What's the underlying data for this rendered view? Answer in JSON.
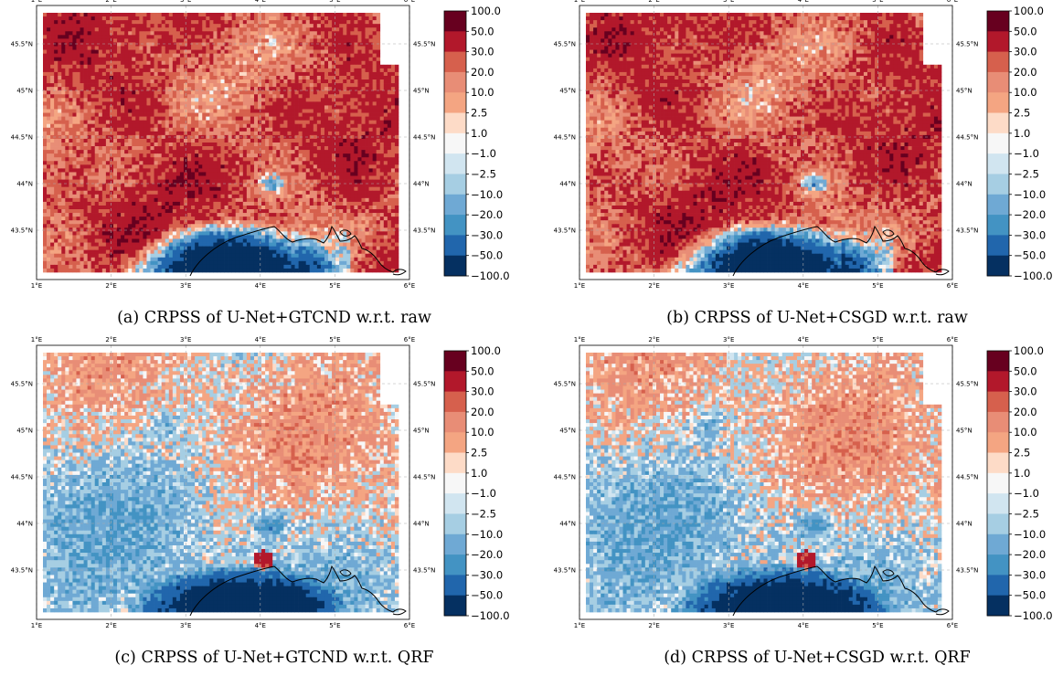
{
  "panels": [
    {
      "id": "a",
      "caption": "(a) CRPSS of U-Net+GTCND w.r.t. raw",
      "variant": "raw"
    },
    {
      "id": "b",
      "caption": "(b) CRPSS of U-Net+CSGD w.r.t. raw",
      "variant": "raw"
    },
    {
      "id": "c",
      "caption": "(c) CRPSS of U-Net+GTCND w.r.t. QRF",
      "variant": "qrf"
    },
    {
      "id": "d",
      "caption": "(d) CRPSS of U-Net+CSGD w.r.t. QRF",
      "variant": "qrf"
    }
  ],
  "map": {
    "lon_ticks": [
      "1°E",
      "2°E",
      "3°E",
      "4°E",
      "5°E",
      "6°E"
    ],
    "lat_ticks": [
      "45.5°N",
      "45°N",
      "44.5°N",
      "44°N",
      "43.5°N"
    ]
  },
  "colorbar": {
    "labels": [
      "100.0",
      "50.0",
      "30.0",
      "20.0",
      "10.0",
      "2.5",
      "1.0",
      "−1.0",
      "−2.5",
      "−10.0",
      "−20.0",
      "−30.0",
      "−50.0",
      "−100.0"
    ],
    "colors": [
      "#67001f",
      "#b2182b",
      "#d6604d",
      "#e88d76",
      "#f4a582",
      "#fddbc7",
      "#f7f7f7",
      "#d1e5f0",
      "#a6cee3",
      "#6fa9d4",
      "#4393c3",
      "#2166ac",
      "#053061"
    ]
  }
}
